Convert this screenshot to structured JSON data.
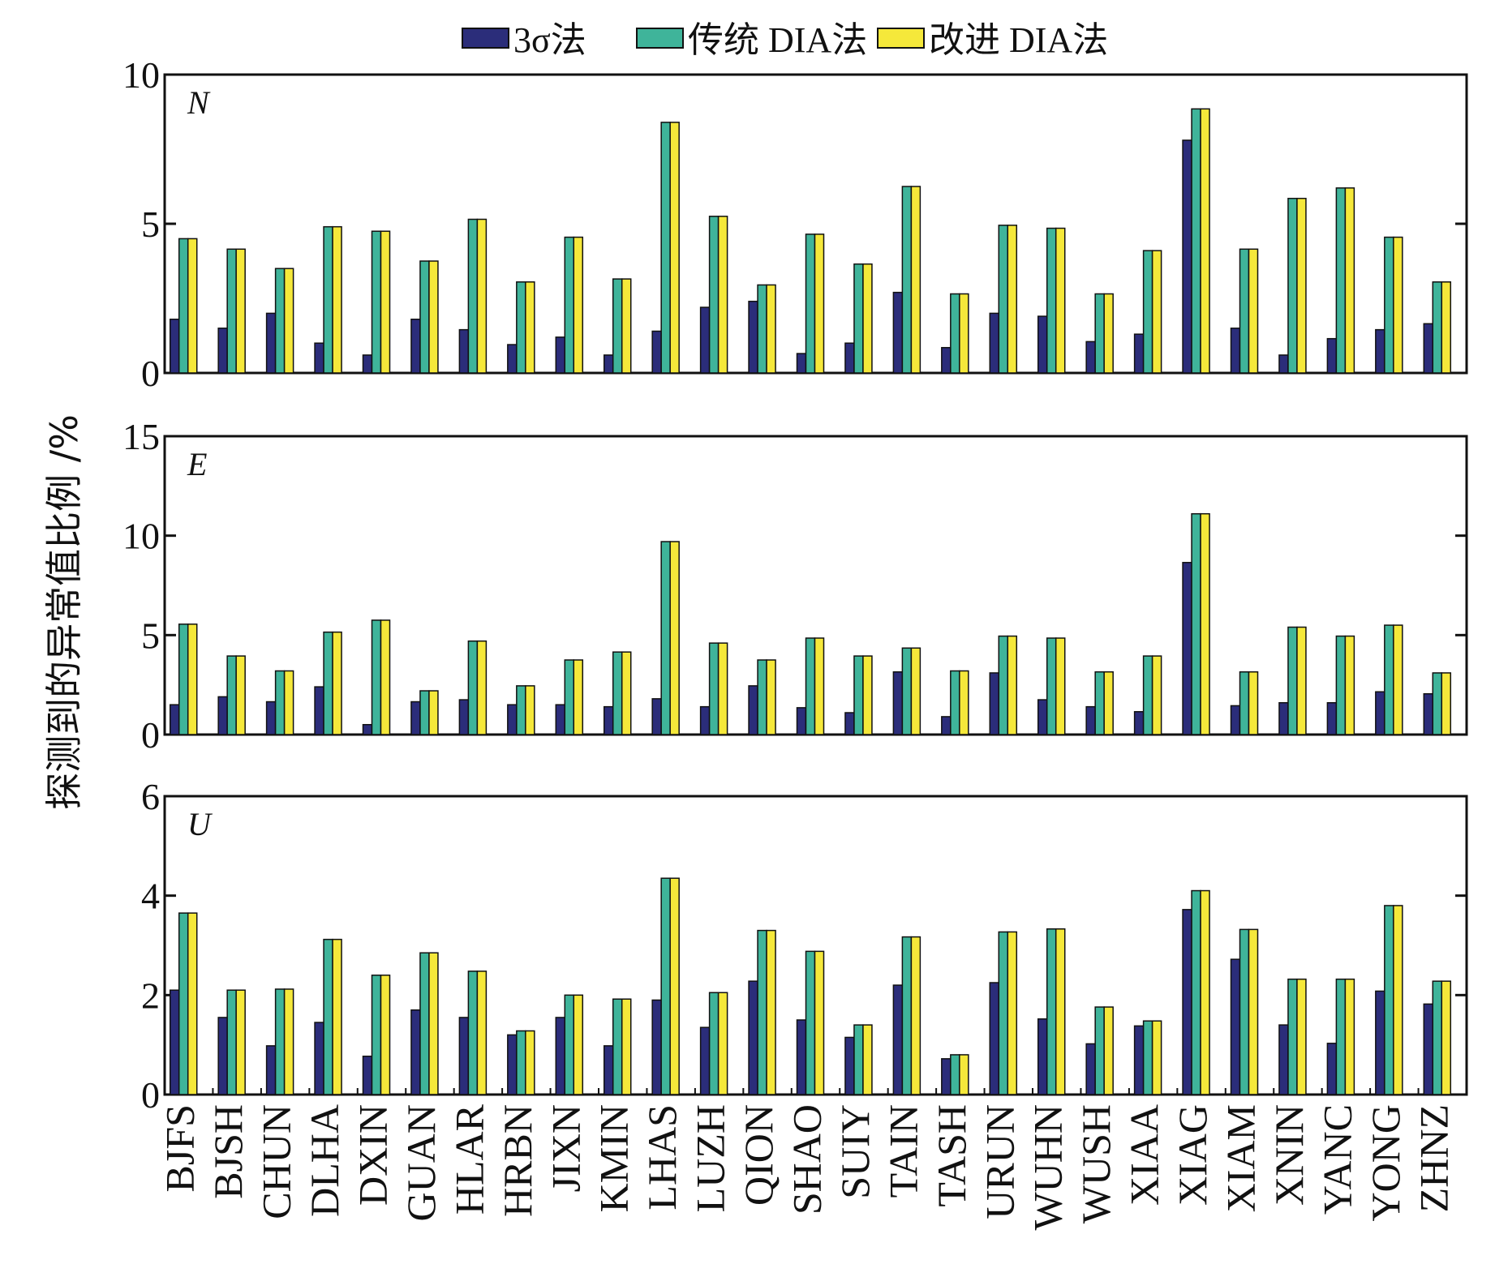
{
  "colors": {
    "sigma3": "#2b2d7a",
    "traditional": "#3fb49a",
    "improved": "#f5e83a"
  },
  "legend": [
    {
      "label": "3σ法",
      "color_key": "sigma3"
    },
    {
      "label": "传统 DIA法",
      "color_key": "traditional"
    },
    {
      "label": "改进 DIA法",
      "color_key": "improved"
    }
  ],
  "ylabel": "探测到的异常值比例 /%",
  "chart_data": {
    "type": "bar",
    "categories": [
      "BJFS",
      "BJSH",
      "CHUN",
      "DLHA",
      "DXIN",
      "GUAN",
      "HLAR",
      "HRBN",
      "JIXN",
      "KMIN",
      "LHAS",
      "LUZH",
      "QION",
      "SHAO",
      "SUIY",
      "TAIN",
      "TASH",
      "URUN",
      "WUHN",
      "WUSH",
      "XIAA",
      "XIAG",
      "XIAM",
      "XNIN",
      "YANC",
      "YONG",
      "ZHNZ"
    ],
    "legend_position": "top",
    "grid": false,
    "panels": [
      {
        "letter": "N",
        "ylim": [
          0,
          10
        ],
        "yticks": [
          0,
          5,
          10
        ],
        "series": [
          {
            "name": "3σ法",
            "values": [
              1.8,
              1.5,
              2.0,
              1.0,
              0.6,
              1.8,
              1.45,
              0.95,
              1.2,
              0.6,
              1.4,
              2.2,
              2.4,
              0.65,
              1.0,
              2.7,
              0.85,
              2.0,
              1.9,
              1.05,
              1.3,
              7.8,
              1.5,
              0.6,
              1.15,
              1.45,
              1.65
            ]
          },
          {
            "name": "传统 DIA法",
            "values": [
              4.5,
              4.15,
              3.5,
              4.9,
              4.75,
              3.75,
              5.15,
              3.05,
              4.55,
              3.15,
              8.4,
              5.25,
              2.95,
              4.65,
              3.65,
              6.25,
              2.65,
              4.95,
              4.85,
              2.65,
              4.1,
              8.85,
              4.15,
              5.85,
              6.2,
              4.55,
              3.05
            ]
          },
          {
            "name": "改进 DIA法",
            "values": [
              4.5,
              4.15,
              3.5,
              4.9,
              4.75,
              3.75,
              5.15,
              3.05,
              4.55,
              3.15,
              8.4,
              5.25,
              2.95,
              4.65,
              3.65,
              6.25,
              2.65,
              4.95,
              4.85,
              2.65,
              4.1,
              8.85,
              4.15,
              5.85,
              6.2,
              4.55,
              3.05
            ]
          }
        ]
      },
      {
        "letter": "E",
        "ylim": [
          0,
          15
        ],
        "yticks": [
          0,
          5,
          10,
          15
        ],
        "series": [
          {
            "name": "3σ法",
            "values": [
              1.5,
              1.9,
              1.65,
              2.4,
              0.5,
              1.65,
              1.75,
              1.5,
              1.5,
              1.4,
              1.8,
              1.4,
              2.45,
              1.35,
              1.1,
              3.15,
              0.9,
              3.1,
              1.75,
              1.4,
              1.15,
              8.65,
              1.45,
              1.6,
              1.6,
              2.15,
              2.05
            ]
          },
          {
            "name": "传统 DIA法",
            "values": [
              5.55,
              3.95,
              3.2,
              5.15,
              5.75,
              2.2,
              4.7,
              2.45,
              3.75,
              4.15,
              9.7,
              4.6,
              3.75,
              4.85,
              3.95,
              4.35,
              3.2,
              4.95,
              4.85,
              3.15,
              3.95,
              11.1,
              3.15,
              5.4,
              4.95,
              5.5,
              3.1
            ]
          },
          {
            "name": "改进 DIA法",
            "values": [
              5.55,
              3.95,
              3.2,
              5.15,
              5.75,
              2.2,
              4.7,
              2.45,
              3.75,
              4.15,
              9.7,
              4.6,
              3.75,
              4.85,
              3.95,
              4.35,
              3.2,
              4.95,
              4.85,
              3.15,
              3.95,
              11.1,
              3.15,
              5.4,
              4.95,
              5.5,
              3.1
            ]
          }
        ]
      },
      {
        "letter": "U",
        "ylim": [
          0,
          6
        ],
        "yticks": [
          0,
          2,
          4,
          6
        ],
        "series": [
          {
            "name": "3σ法",
            "values": [
              2.1,
              1.55,
              0.98,
              1.45,
              0.77,
              1.7,
              1.55,
              1.2,
              1.55,
              0.98,
              1.9,
              1.35,
              2.28,
              1.5,
              1.15,
              2.2,
              0.72,
              2.25,
              1.52,
              1.02,
              1.38,
              3.72,
              2.72,
              1.4,
              1.03,
              2.08,
              1.82
            ]
          },
          {
            "name": "传统 DIA法",
            "values": [
              3.65,
              2.1,
              2.12,
              3.12,
              2.4,
              2.85,
              2.48,
              1.28,
              2.0,
              1.92,
              4.35,
              2.05,
              3.3,
              2.88,
              1.4,
              3.17,
              0.8,
              3.27,
              3.33,
              1.76,
              1.48,
              4.1,
              3.32,
              2.32,
              2.32,
              3.8,
              2.28
            ]
          },
          {
            "name": "改进 DIA法",
            "values": [
              3.65,
              2.1,
              2.12,
              3.12,
              2.4,
              2.85,
              2.48,
              1.28,
              2.0,
              1.92,
              4.35,
              2.05,
              3.3,
              2.88,
              1.4,
              3.17,
              0.8,
              3.27,
              3.33,
              1.76,
              1.48,
              4.1,
              3.32,
              2.32,
              2.32,
              3.8,
              2.28
            ]
          }
        ]
      }
    ]
  }
}
